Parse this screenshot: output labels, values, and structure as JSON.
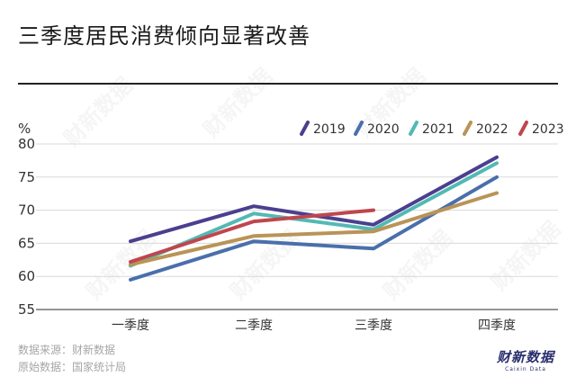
{
  "title": "三季度居民消费倾向显著改善",
  "footer": {
    "source": "数据来源：财新数据",
    "origin": "原始数据：国家统计局"
  },
  "brand": {
    "name": "财新数据",
    "sub": "Caixin Data"
  },
  "watermark": "财新数据",
  "chart_data": {
    "type": "line",
    "categories": [
      "一季度",
      "二季度",
      "三季度",
      "四季度"
    ],
    "ylabel": "%",
    "ylim": [
      55,
      80
    ],
    "yticks": [
      55,
      60,
      65,
      70,
      75,
      80
    ],
    "grid": true,
    "legend_position": "top-right",
    "series": [
      {
        "name": "2019",
        "color": "#4b3f8f",
        "values": [
          65.3,
          70.6,
          67.8,
          78.0
        ]
      },
      {
        "name": "2020",
        "color": "#4a6fab",
        "values": [
          59.5,
          65.3,
          64.2,
          75.0
        ]
      },
      {
        "name": "2021",
        "color": "#52b9b3",
        "values": [
          61.6,
          69.5,
          67.1,
          77.1
        ]
      },
      {
        "name": "2022",
        "color": "#b99457",
        "values": [
          61.8,
          66.1,
          66.8,
          72.6
        ]
      },
      {
        "name": "2023",
        "color": "#c0464d",
        "values": [
          62.2,
          68.3,
          70.0,
          null
        ]
      }
    ]
  }
}
